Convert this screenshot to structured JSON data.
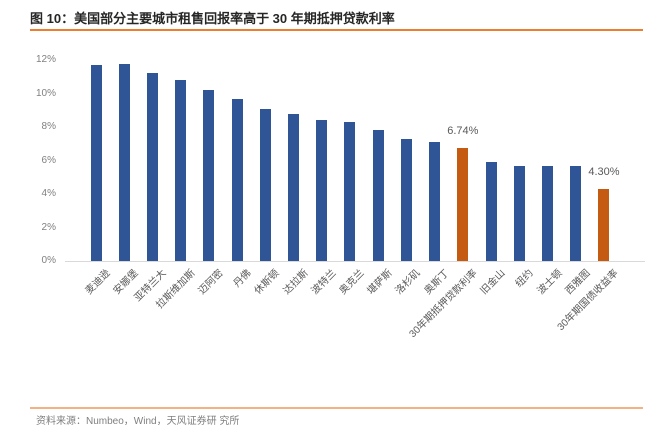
{
  "title": "图 10：美国部分主要城市租售回报率高于 30 年期抵押贷款利率",
  "footer": {
    "source": "资料来源：Numbeo，Wind，天风证券研 究所"
  },
  "colors": {
    "bar_blue": "#2F5597",
    "bar_orange": "#C55A11",
    "title_rule": "#ED7D31",
    "footer_rule": "#F4B183",
    "axis_text": "#808080",
    "label_text": "#595959",
    "baseline": "#D9D9D9",
    "title_text": "#262626"
  },
  "chart_data": {
    "type": "bar",
    "title": "美国部分主要城市租售回报率高于 30 年期抵押贷款利率",
    "xlabel": "",
    "ylabel": "",
    "unit": "%",
    "ylim": [
      0,
      12
    ],
    "y_ticks": [
      "0%",
      "2%",
      "4%",
      "6%",
      "8%",
      "10%",
      "12%"
    ],
    "grid": false,
    "legend": false,
    "categories": [
      "麦迪逊",
      "安娜堡",
      "亚特兰大",
      "拉斯维加斯",
      "迈阿密",
      "丹佛",
      "休斯顿",
      "达拉斯",
      "波特兰",
      "奥克兰",
      "堪萨斯",
      "洛杉矶",
      "奥斯丁",
      "30年期抵押贷款利率",
      "旧金山",
      "纽约",
      "波士顿",
      "西雅图",
      "30年期国债收益率"
    ],
    "values": [
      11.7,
      11.75,
      11.2,
      10.8,
      10.2,
      9.7,
      9.1,
      8.8,
      8.4,
      8.3,
      7.8,
      7.3,
      7.1,
      6.74,
      5.9,
      5.7,
      5.7,
      5.7,
      4.3
    ],
    "highlight_indices": [
      13,
      18
    ],
    "data_labels": {
      "13": "6.74%",
      "18": "4.30%"
    }
  }
}
